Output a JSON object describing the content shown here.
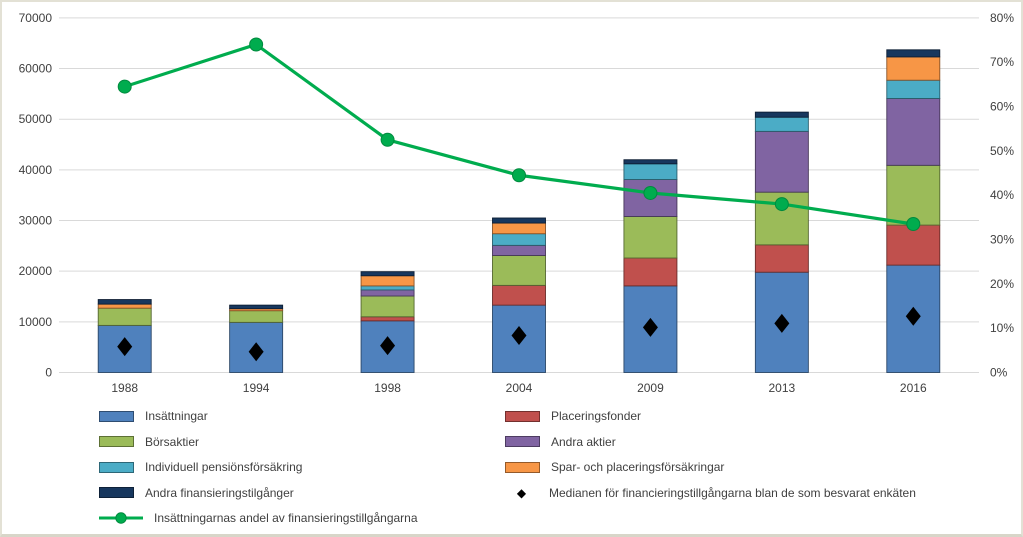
{
  "chart_data": {
    "type": "bar",
    "subtype": "stacked-bar-with-line-and-median-markers",
    "title": "",
    "categories": [
      "1988",
      "1994",
      "1998",
      "2004",
      "2009",
      "2013",
      "2016"
    ],
    "series": [
      {
        "name": "Insättningar",
        "color": "#4F81BD",
        "values": [
          9300,
          9900,
          10200,
          13300,
          17100,
          19800,
          21200
        ]
      },
      {
        "name": "Placeringsfonder",
        "color": "#C0504D",
        "values": [
          0,
          0,
          800,
          3900,
          5500,
          5400,
          7900
        ]
      },
      {
        "name": "Börsaktier",
        "color": "#9BBB59",
        "values": [
          3400,
          2300,
          4100,
          5900,
          8200,
          10400,
          11800
        ]
      },
      {
        "name": "Andra aktier",
        "color": "#8064A2",
        "values": [
          0,
          0,
          1200,
          2000,
          7300,
          12000,
          13200
        ]
      },
      {
        "name": "Individuell pensiönsförsäkring",
        "color": "#4BACC6",
        "values": [
          0,
          0,
          800,
          2300,
          3100,
          2800,
          3600
        ]
      },
      {
        "name": "Spar- och placeringsförsäkringar",
        "color": "#F79646",
        "values": [
          800,
          400,
          2000,
          2100,
          0,
          0,
          4600
        ]
      },
      {
        "name": "Andra finansieringstilgånger",
        "color": "#17375E",
        "values": [
          900,
          700,
          800,
          1000,
          800,
          1000,
          1400
        ]
      }
    ],
    "median": {
      "name": "Medianen för financieringstillgångarna blan de som besvarat enkäten",
      "color": "#000000",
      "values": [
        5100,
        4100,
        5300,
        7300,
        8900,
        9700,
        11100
      ]
    },
    "line": {
      "name": "Insättningarnas andel av finansieringstillgångarna",
      "color": "#00AC4E",
      "axis": "right",
      "values_percent": [
        64.5,
        74,
        52.5,
        44.5,
        40.5,
        38,
        33.5
      ]
    },
    "left_axis": {
      "min": 0,
      "max": 70000,
      "step": 10000,
      "ticks": [
        "0",
        "10000",
        "20000",
        "30000",
        "40000",
        "50000",
        "60000",
        "70000"
      ]
    },
    "right_axis": {
      "min": 0,
      "max": 80,
      "step": 10,
      "ticks": [
        "0%",
        "10%",
        "20%",
        "30%",
        "40%",
        "50%",
        "60%",
        "70%",
        "80%"
      ]
    },
    "grid": {
      "visible": true,
      "color": "#d9d9d9"
    },
    "legend": {
      "position": "bottom-two-columns",
      "left_column": [
        {
          "label": "Insättningar",
          "swatch": "bar",
          "color": "#4F81BD"
        },
        {
          "label": "Börsaktier",
          "swatch": "bar",
          "color": "#9BBB59"
        },
        {
          "label": "Individuell pensiönsförsäkring",
          "swatch": "bar",
          "color": "#4BACC6"
        },
        {
          "label": "Andra finansieringstilgånger",
          "swatch": "bar",
          "color": "#17375E"
        },
        {
          "label": "Insättningarnas andel av finansieringstillgångarna",
          "swatch": "line",
          "color": "#00AC4E"
        }
      ],
      "right_column": [
        {
          "label": "Placeringsfonder",
          "swatch": "bar",
          "color": "#C0504D"
        },
        {
          "label": "Andra aktier",
          "swatch": "bar",
          "color": "#8064A2"
        },
        {
          "label": "Spar- och placeringsförsäkringar",
          "swatch": "bar",
          "color": "#F79646"
        },
        {
          "label": "Medianen för financieringstillgångarna blan de som besvarat enkäten",
          "swatch": "diamond",
          "color": "#000000"
        }
      ]
    }
  }
}
